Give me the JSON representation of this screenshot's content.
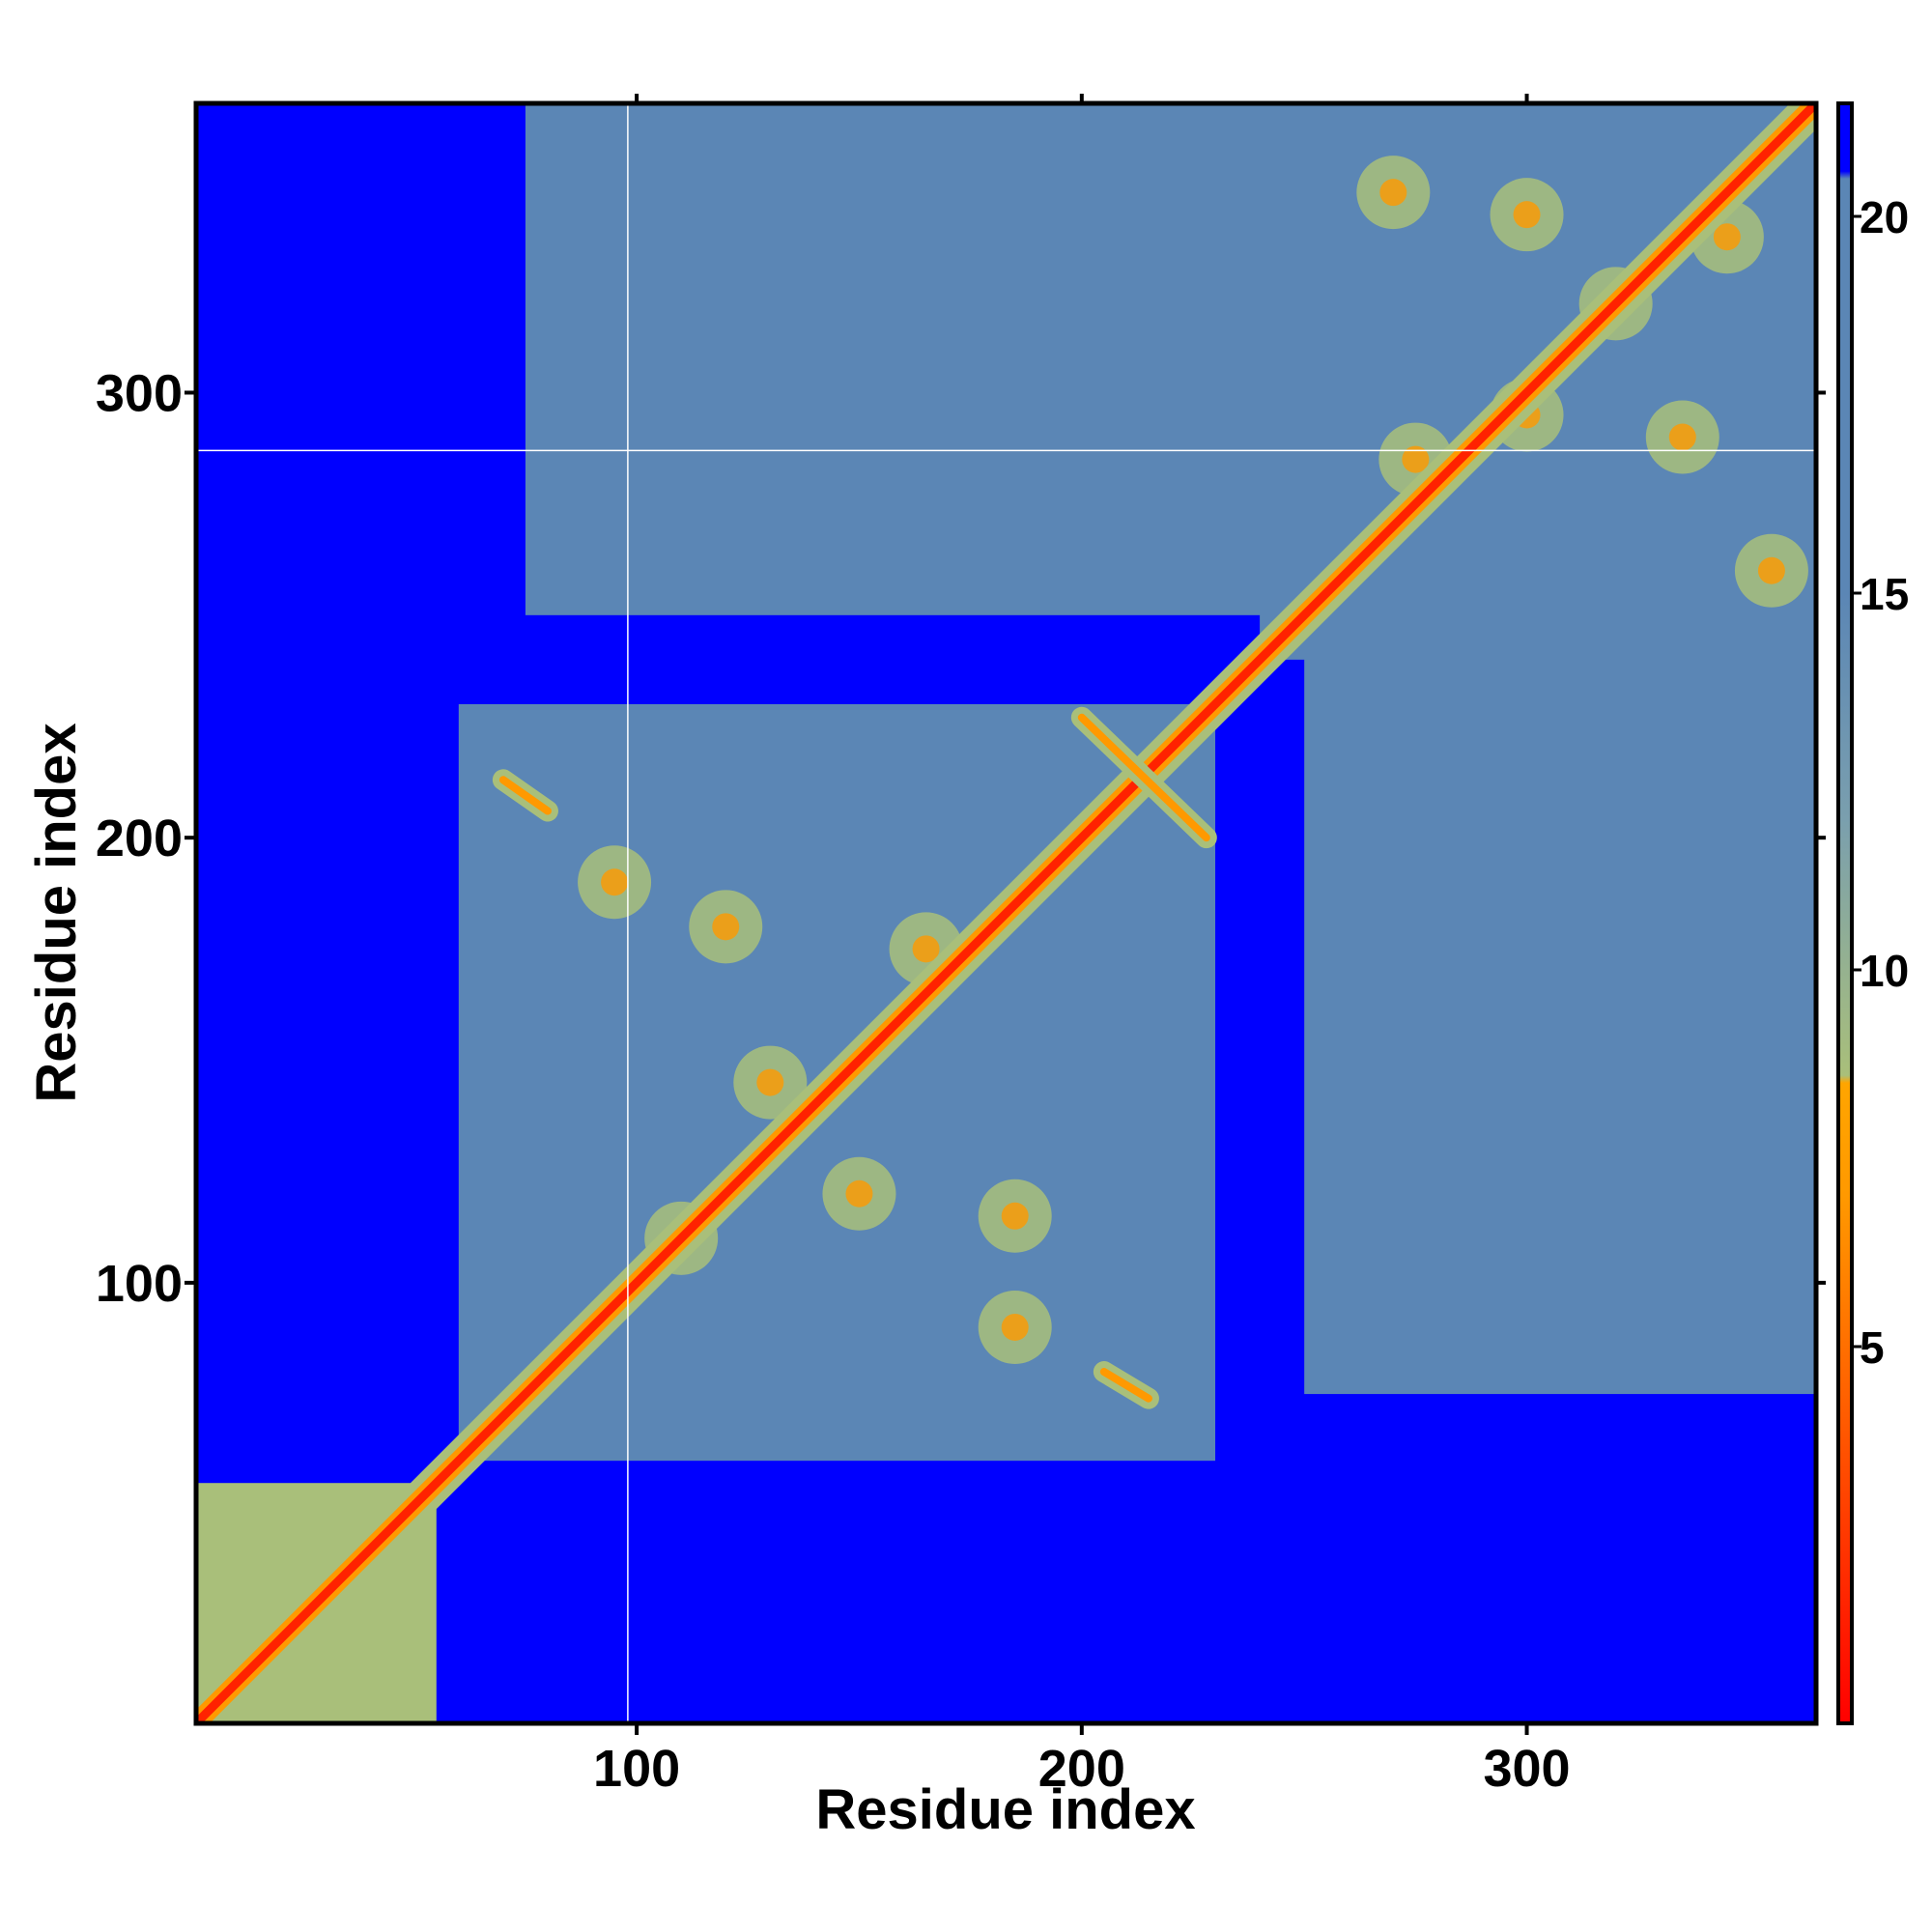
{
  "chart_data": {
    "type": "heatmap",
    "title": "",
    "xlabel": "Residue index",
    "ylabel": "Residue index",
    "xlim": [
      1,
      365
    ],
    "ylim": [
      1,
      365
    ],
    "x_ticks": [
      100,
      200,
      300
    ],
    "y_ticks": [
      100,
      200,
      300
    ],
    "x_tick_labels": [
      "100",
      "200",
      "300"
    ],
    "y_tick_labels": [
      "100",
      "200",
      "300"
    ],
    "colorbar": {
      "range": [
        0,
        21.5
      ],
      "ticks": [
        5,
        10,
        15,
        20
      ],
      "tick_labels": [
        "5",
        "10",
        "15",
        "20"
      ],
      "stops": [
        {
          "value": 0,
          "color": "#ff0000"
        },
        {
          "value": 4,
          "color": "#ff5a00"
        },
        {
          "value": 7,
          "color": "#ff9900"
        },
        {
          "value": 8.5,
          "color": "#ffa500"
        },
        {
          "value": 8.6,
          "color": "#a9bf7a"
        },
        {
          "value": 12,
          "color": "#7a9fae"
        },
        {
          "value": 15,
          "color": "#5b86b5"
        },
        {
          "value": 20.5,
          "color": "#5b86b5"
        },
        {
          "value": 20.6,
          "color": "#0000ff"
        },
        {
          "value": 21.5,
          "color": "#0000ff"
        }
      ]
    },
    "background_color": "#0000ff",
    "contact_color": "#5b86b5",
    "near_color": "#a9bf7a",
    "close_color": "#ff9900",
    "diagonal_color": "#ff2200",
    "guide_lines": {
      "x": 98,
      "y": 287,
      "color": "#ffffff"
    },
    "blocks": [
      {
        "x": [
          1,
          55
        ],
        "y": [
          1,
          55
        ],
        "level": "near"
      },
      {
        "x": [
          60,
          230
        ],
        "y": [
          60,
          230
        ],
        "level": "contact"
      },
      {
        "x": [
          240,
          365
        ],
        "y": [
          240,
          365
        ],
        "level": "contact"
      },
      {
        "x": [
          75,
          245
        ],
        "y": [
          250,
          365
        ],
        "level": "contact"
      },
      {
        "x": [
          250,
          365
        ],
        "y": [
          75,
          245
        ],
        "level": "contact"
      }
    ],
    "near_blobs": [
      {
        "x": 120,
        "y": 180
      },
      {
        "x": 95,
        "y": 190
      },
      {
        "x": 130,
        "y": 145
      },
      {
        "x": 150,
        "y": 120
      },
      {
        "x": 185,
        "y": 115
      },
      {
        "x": 110,
        "y": 110
      },
      {
        "x": 185,
        "y": 90
      },
      {
        "x": 165,
        "y": 175
      },
      {
        "x": 270,
        "y": 345
      },
      {
        "x": 300,
        "y": 340
      },
      {
        "x": 320,
        "y": 320
      },
      {
        "x": 345,
        "y": 335
      },
      {
        "x": 300,
        "y": 295
      },
      {
        "x": 335,
        "y": 290
      },
      {
        "x": 275,
        "y": 285
      },
      {
        "x": 355,
        "y": 260
      }
    ],
    "crossing_strands": [
      {
        "from": [
          200,
          227
        ],
        "to": [
          228,
          200
        ]
      },
      {
        "from": [
          70,
          213
        ],
        "to": [
          80,
          206
        ]
      },
      {
        "from": [
          205,
          80
        ],
        "to": [
          215,
          74
        ]
      }
    ]
  }
}
